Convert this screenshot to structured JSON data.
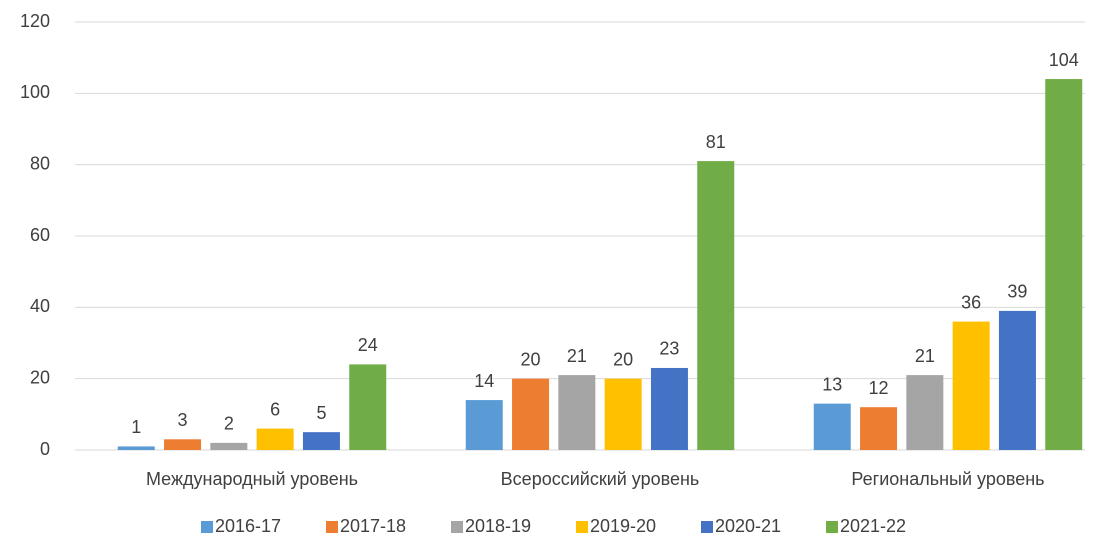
{
  "chart_data": {
    "type": "bar",
    "categories": [
      "Международный уровень",
      "Всероссийский уровень",
      "Региональный уровень"
    ],
    "series": [
      {
        "name": "2016-17",
        "color": "#5b9bd5",
        "values": [
          1,
          14,
          13
        ]
      },
      {
        "name": "2017-18",
        "color": "#ed7d31",
        "values": [
          3,
          20,
          12
        ]
      },
      {
        "name": "2018-19",
        "color": "#a5a5a5",
        "values": [
          2,
          21,
          21
        ]
      },
      {
        "name": "2019-20",
        "color": "#ffc000",
        "values": [
          6,
          20,
          36
        ]
      },
      {
        "name": "2020-21",
        "color": "#4472c4",
        "values": [
          5,
          23,
          39
        ]
      },
      {
        "name": "2021-22",
        "color": "#70ad47",
        "values": [
          24,
          81,
          104
        ]
      }
    ],
    "ylim": [
      0,
      120
    ],
    "yticks": [
      0,
      20,
      40,
      60,
      80,
      100,
      120
    ],
    "grid": true,
    "legend": "bottom"
  }
}
